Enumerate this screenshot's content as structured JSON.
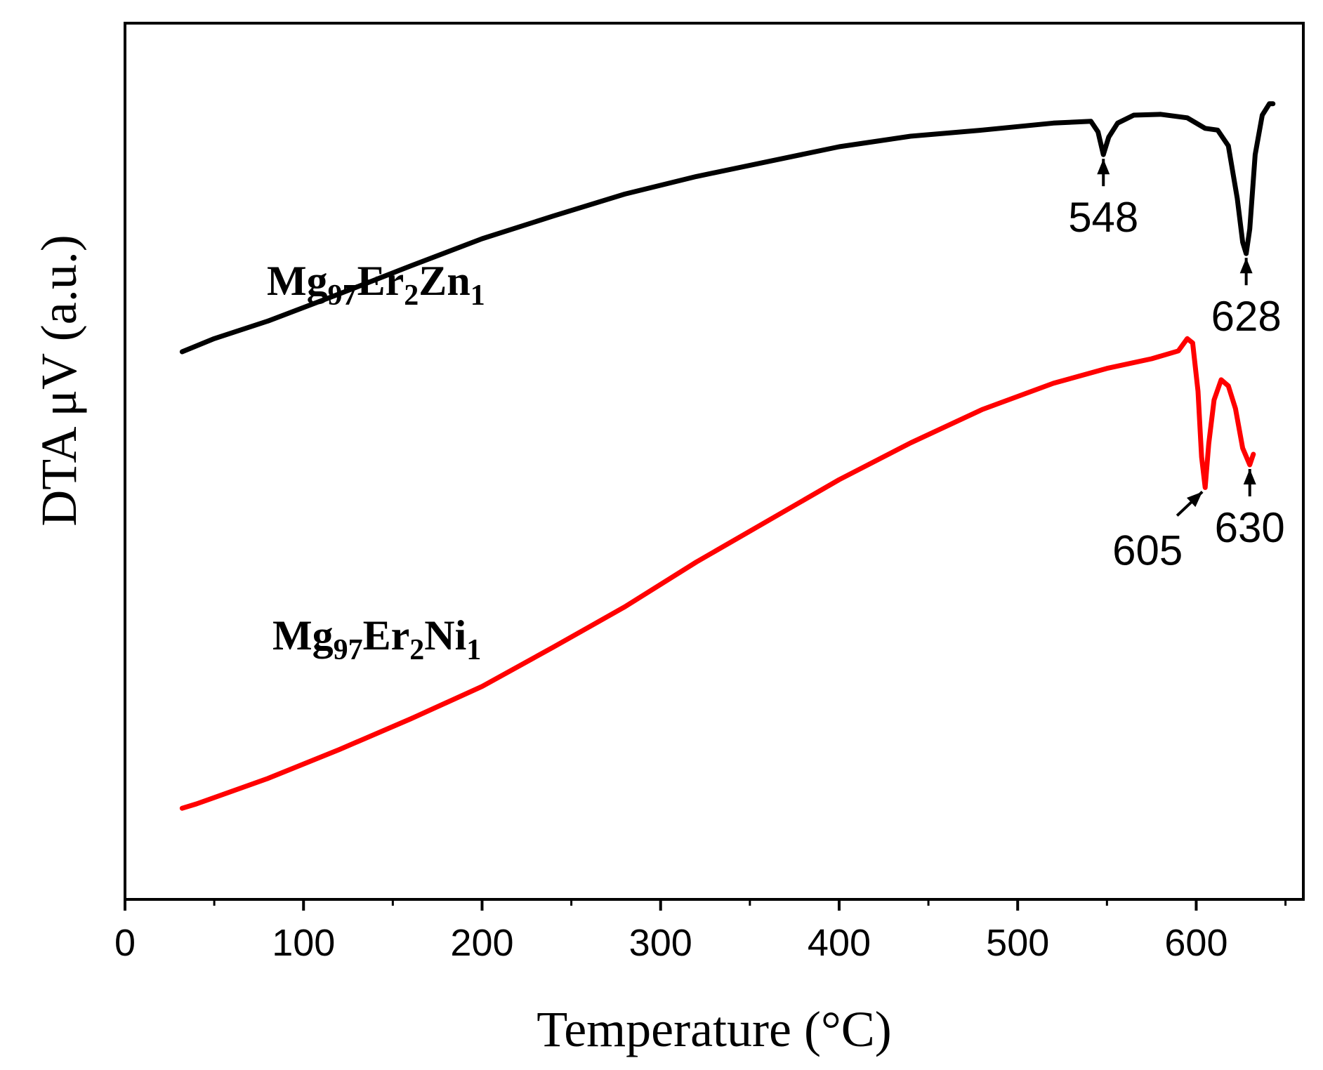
{
  "chart_data": {
    "type": "line",
    "title": "",
    "xlabel": "Temperature (°C)",
    "ylabel": "DTA μV (a.u.)",
    "xlim": [
      0,
      660
    ],
    "ylim": [
      0,
      100
    ],
    "x_ticks": [
      0,
      100,
      200,
      300,
      400,
      500,
      600
    ],
    "x_minor_ticks": [
      50,
      150,
      250,
      350,
      450,
      550,
      650
    ],
    "y_ticks_shown": false,
    "grid": false,
    "series": [
      {
        "name": "Mg97Er2Zn1",
        "label_main": "Mg",
        "label_parts": [
          {
            "text": "Mg",
            "sub": false
          },
          {
            "text": "97",
            "sub": true
          },
          {
            "text": "Er",
            "sub": false
          },
          {
            "text": "2",
            "sub": true
          },
          {
            "text": "Zn",
            "sub": false
          },
          {
            "text": "1",
            "sub": true
          }
        ],
        "color": "#000000",
        "x": [
          32,
          50,
          80,
          120,
          160,
          200,
          240,
          280,
          320,
          360,
          400,
          440,
          480,
          520,
          541,
          545,
          548,
          551,
          556,
          565,
          580,
          595,
          605,
          612,
          618,
          623,
          626,
          628,
          630,
          633,
          637,
          641,
          643
        ],
        "y": [
          62.5,
          64.0,
          66.0,
          69.1,
          72.3,
          75.4,
          78.0,
          80.5,
          82.5,
          84.2,
          85.9,
          87.1,
          87.8,
          88.6,
          88.8,
          87.6,
          85.0,
          87.0,
          88.6,
          89.5,
          89.6,
          89.2,
          88.0,
          87.8,
          86.0,
          80.0,
          75.0,
          73.7,
          76.5,
          85.0,
          89.5,
          90.8,
          90.8
        ]
      },
      {
        "name": "Mg97Er2Ni1",
        "label_parts": [
          {
            "text": "Mg",
            "sub": false
          },
          {
            "text": "97",
            "sub": true
          },
          {
            "text": "Er",
            "sub": false
          },
          {
            "text": "2",
            "sub": true
          },
          {
            "text": "Ni",
            "sub": false
          },
          {
            "text": "1",
            "sub": true
          }
        ],
        "color": "#ff0000",
        "x": [
          32,
          40,
          80,
          120,
          160,
          200,
          240,
          280,
          320,
          360,
          400,
          440,
          480,
          520,
          550,
          575,
          590,
          595,
          598,
          601,
          603,
          605,
          607,
          610,
          614,
          618,
          622,
          626,
          630,
          632
        ],
        "y": [
          10.4,
          10.9,
          13.8,
          17.1,
          20.6,
          24.3,
          28.8,
          33.4,
          38.5,
          43.2,
          47.9,
          52.1,
          55.9,
          58.9,
          60.6,
          61.7,
          62.6,
          64.0,
          63.5,
          58.0,
          50.5,
          47.0,
          52.0,
          57.0,
          59.3,
          58.6,
          56.0,
          51.5,
          49.6,
          50.8
        ]
      }
    ],
    "annotations": [
      {
        "text": "548",
        "x": 548,
        "series": "Mg97Er2Zn1",
        "arrow": "up"
      },
      {
        "text": "628",
        "x": 628,
        "series": "Mg97Er2Zn1",
        "arrow": "up"
      },
      {
        "text": "605",
        "x": 605,
        "series": "Mg97Er2Ni1",
        "arrow": "diagonal"
      },
      {
        "text": "630",
        "x": 630,
        "series": "Mg97Er2Ni1",
        "arrow": "up"
      }
    ]
  }
}
